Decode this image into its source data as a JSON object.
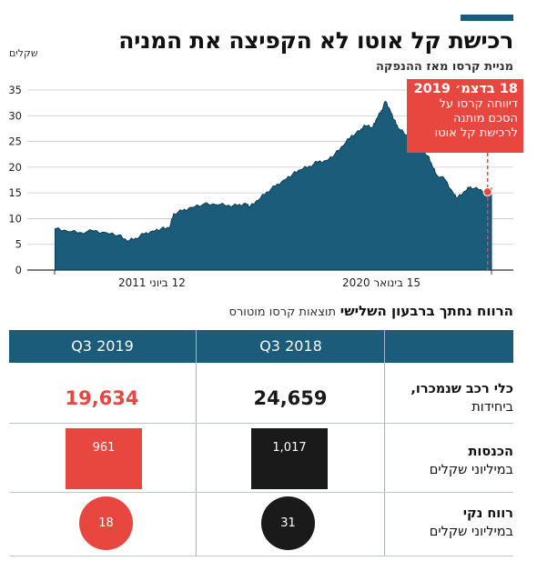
{
  "header": {
    "title": "רכישת קל אוטו לא הקפיצה את המניה",
    "subtitle": "מניית קרסו מאז ההנפקה",
    "unit": "שקלים"
  },
  "annotation": {
    "date": "18 בדצמ׳ 2019",
    "lines": [
      "דיווחה קרסו על",
      "הסכם מותנה",
      "לרכישת קל אוטו"
    ]
  },
  "colors": {
    "navy": "#1b5c7a",
    "red": "#e8473f",
    "black": "#1a1a1a"
  },
  "chart_data": {
    "type": "area",
    "x_start_label": "12 ביוני 2011",
    "x_end_label": "15 בינואר 2020",
    "xlim": [
      "2011-06-12",
      "2020-01-15"
    ],
    "ylim": [
      0,
      35
    ],
    "yticks": [
      "0",
      "5",
      "10",
      "15",
      "20",
      "25",
      "30",
      "35"
    ],
    "grid": true,
    "series": [
      {
        "points": [
          [
            "2011-06",
            8.0
          ],
          [
            "2011-09",
            7.5
          ],
          [
            "2011-12",
            7.3
          ],
          [
            "2012-03",
            7.6
          ],
          [
            "2012-06",
            7.3
          ],
          [
            "2012-09",
            6.8
          ],
          [
            "2012-11",
            5.6
          ],
          [
            "2013-01",
            6.2
          ],
          [
            "2013-03",
            7.0
          ],
          [
            "2013-05",
            7.6
          ],
          [
            "2013-07",
            8.0
          ],
          [
            "2013-09",
            8.2
          ],
          [
            "2013-10",
            11.0
          ],
          [
            "2013-12",
            11.5
          ],
          [
            "2014-02",
            12.2
          ],
          [
            "2014-05",
            12.8
          ],
          [
            "2014-08",
            12.7
          ],
          [
            "2014-11",
            12.6
          ],
          [
            "2015-01",
            12.5
          ],
          [
            "2015-03",
            13.0
          ],
          [
            "2015-04",
            12.3
          ],
          [
            "2015-06",
            13.6
          ],
          [
            "2015-08",
            15.2
          ],
          [
            "2015-10",
            16.3
          ],
          [
            "2015-12",
            17.5
          ],
          [
            "2016-02",
            18.6
          ],
          [
            "2016-04",
            19.5
          ],
          [
            "2016-06",
            20.2
          ],
          [
            "2016-08",
            21.0
          ],
          [
            "2016-10",
            21.3
          ],
          [
            "2016-12",
            22.5
          ],
          [
            "2017-02",
            24.2
          ],
          [
            "2017-04",
            26.2
          ],
          [
            "2017-06",
            27.0
          ],
          [
            "2017-07",
            28.2
          ],
          [
            "2017-09",
            27.8
          ],
          [
            "2017-10",
            29.5
          ],
          [
            "2017-11",
            31.0
          ],
          [
            "2017-12",
            32.8
          ],
          [
            "2018-01",
            31.2
          ],
          [
            "2018-02",
            29.2
          ],
          [
            "2018-03",
            27.6
          ],
          [
            "2018-05",
            26.2
          ],
          [
            "2018-07",
            25.0
          ],
          [
            "2018-08",
            24.2
          ],
          [
            "2018-10",
            22.2
          ],
          [
            "2018-11",
            20.2
          ],
          [
            "2018-12",
            18.6
          ],
          [
            "2019-02",
            17.6
          ],
          [
            "2019-04",
            15.0
          ],
          [
            "2019-05",
            14.0
          ],
          [
            "2019-07",
            15.4
          ],
          [
            "2019-08",
            16.2
          ],
          [
            "2019-10",
            15.6
          ],
          [
            "2019-12",
            15.2
          ],
          [
            "2020-01",
            16.0
          ]
        ]
      }
    ],
    "highlight": {
      "x": "2019-12-18",
      "y": 15.2
    }
  },
  "table": {
    "title_bold": "הרווח נחתך ברבעון השלישי",
    "title_sub": "תוצאות קרסו מוטורס",
    "col_2018": "Q3 2018",
    "col_2019": "Q3 2019",
    "rows": [
      {
        "label1": "כלי רכב שנמכרו,",
        "label2": "ביחידות",
        "v2018": "24,659",
        "v2019": "19,634"
      },
      {
        "label1": "הכנסות",
        "label2": "במיליוני שקלים",
        "v2018": "1,017",
        "v2019": "961"
      },
      {
        "label1": "רווח נקי",
        "label2": "במיליוני שקלים",
        "v2018": "31",
        "v2019": "18"
      }
    ]
  }
}
